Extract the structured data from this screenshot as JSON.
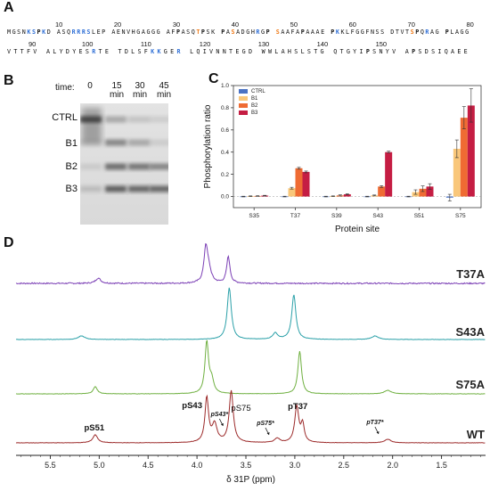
{
  "panelA": {
    "letter": "A",
    "lines": [
      {
        "numbers": [
          {
            "label": "10",
            "pos": 9
          },
          {
            "label": "20",
            "pos": 20
          },
          {
            "label": "30",
            "pos": 31
          },
          {
            "label": "40",
            "pos": 42
          },
          {
            "label": "50",
            "pos": 53
          },
          {
            "label": "60",
            "pos": 64
          },
          {
            "label": "70",
            "pos": 75
          },
          {
            "label": "80",
            "pos": 86
          }
        ],
        "residues": [
          {
            "t": "MGSN",
            "s": ""
          },
          {
            "t": "K",
            "s": "blue"
          },
          {
            "t": "S",
            "s": "blue"
          },
          {
            "t": "P",
            "s": "bold"
          },
          {
            "t": "K",
            "s": "blue"
          },
          {
            "t": "D ",
            "s": ""
          },
          {
            "t": "ASQ",
            "s": ""
          },
          {
            "t": "RRRS",
            "s": "blue"
          },
          {
            "t": "LEP ",
            "s": ""
          },
          {
            "t": "AENVHGAGGG ",
            "s": ""
          },
          {
            "t": "AF",
            "s": ""
          },
          {
            "t": "P",
            "s": "bold"
          },
          {
            "t": "ASQ",
            "s": ""
          },
          {
            "t": "T",
            "s": "orange"
          },
          {
            "t": "P",
            "s": "bold"
          },
          {
            "t": "SK ",
            "s": ""
          },
          {
            "t": "P",
            "s": "bold"
          },
          {
            "t": "A",
            "s": ""
          },
          {
            "t": "S",
            "s": "orange"
          },
          {
            "t": "ADGH",
            "s": ""
          },
          {
            "t": "R",
            "s": "blue"
          },
          {
            "t": "G",
            "s": ""
          },
          {
            "t": "P",
            "s": "bold"
          },
          {
            "t": " ",
            "s": ""
          },
          {
            "t": "S",
            "s": "orange"
          },
          {
            "t": "AAFA",
            "s": ""
          },
          {
            "t": "P",
            "s": "bold"
          },
          {
            "t": "AAAE ",
            "s": ""
          },
          {
            "t": "P",
            "s": "bold"
          },
          {
            "t": "K",
            "s": "blue"
          },
          {
            "t": "KLFGGFNSS ",
            "s": ""
          },
          {
            "t": "DTVT",
            "s": ""
          },
          {
            "t": "S",
            "s": "orange"
          },
          {
            "t": "P",
            "s": "bold"
          },
          {
            "t": "Q",
            "s": ""
          },
          {
            "t": "R",
            "s": "blue"
          },
          {
            "t": "AG ",
            "s": ""
          },
          {
            "t": "P",
            "s": "bold"
          },
          {
            "t": "LAGG",
            "s": ""
          }
        ]
      },
      {
        "numbers": [
          {
            "label": "90",
            "pos": 4
          },
          {
            "label": "100",
            "pos": 14
          },
          {
            "label": "110",
            "pos": 25
          },
          {
            "label": "120",
            "pos": 36
          },
          {
            "label": "130",
            "pos": 47
          },
          {
            "label": "140",
            "pos": 58
          },
          {
            "label": "150",
            "pos": 69
          }
        ],
        "residues": [
          {
            "t": "VTTFV ",
            "s": ""
          },
          {
            "t": "ALYDYES",
            "s": ""
          },
          {
            "t": "R",
            "s": "blue"
          },
          {
            "t": "TE ",
            "s": ""
          },
          {
            "t": "TDLSF",
            "s": ""
          },
          {
            "t": "KK",
            "s": "blue"
          },
          {
            "t": "GE",
            "s": ""
          },
          {
            "t": "R",
            "s": "blue"
          },
          {
            "t": " ",
            "s": ""
          },
          {
            "t": "LQIVNNTEGD ",
            "s": ""
          },
          {
            "t": "WWLAHSLSTG ",
            "s": ""
          },
          {
            "t": "QTGYI",
            "s": ""
          },
          {
            "t": "P",
            "s": "bold"
          },
          {
            "t": "SNYV ",
            "s": ""
          },
          {
            "t": "A",
            "s": ""
          },
          {
            "t": "P",
            "s": "bold"
          },
          {
            "t": "SDSIQAEE",
            "s": ""
          }
        ]
      }
    ]
  },
  "panelB": {
    "letter": "B",
    "time_label": "time:",
    "lanes": [
      {
        "line1": "0",
        "line2": ""
      },
      {
        "line1": "15",
        "line2": "min"
      },
      {
        "line1": "30",
        "line2": "min"
      },
      {
        "line1": "45",
        "line2": "min"
      }
    ],
    "bands": [
      "CTRL",
      "B1",
      "B2",
      "B3"
    ]
  },
  "panelC": {
    "letter": "C",
    "chart_data": {
      "type": "bar",
      "categories": [
        "S35",
        "T37",
        "S39",
        "S43",
        "S51",
        "S75"
      ],
      "series": [
        {
          "name": "CTRL",
          "color": "#4a72c4",
          "values": [
            0.0,
            0.0,
            0.0,
            0.0,
            0.0,
            -0.01
          ],
          "errors": [
            0.003,
            0.003,
            0.003,
            0.003,
            0.003,
            0.03
          ]
        },
        {
          "name": "B1",
          "color": "#f9c77a",
          "values": [
            0.003,
            0.075,
            0.003,
            0.01,
            0.04,
            0.43
          ],
          "errors": [
            0.003,
            0.008,
            0.003,
            0.004,
            0.02,
            0.08
          ]
        },
        {
          "name": "B2",
          "color": "#ef6b33",
          "values": [
            0.005,
            0.255,
            0.01,
            0.09,
            0.07,
            0.71
          ],
          "errors": [
            0.003,
            0.008,
            0.005,
            0.008,
            0.025,
            0.1
          ]
        },
        {
          "name": "B3",
          "color": "#c51d43",
          "values": [
            0.008,
            0.222,
            0.02,
            0.4,
            0.09,
            0.82
          ],
          "errors": [
            0.003,
            0.008,
            0.005,
            0.008,
            0.025,
            0.15
          ]
        }
      ],
      "xlabel": "Protein site",
      "ylabel": "Phosphorylation ratio",
      "ylim": [
        -0.1,
        1.0
      ],
      "yticks": [
        "0.0",
        "0.2",
        "0.4",
        "0.6",
        "0.8",
        "1.0"
      ],
      "legend_position": "top-left",
      "grid": false
    }
  },
  "panelD": {
    "letter": "D",
    "chart_data": {
      "type": "line",
      "xlabel": "δ 31P (ppm)",
      "xlim": [
        5.85,
        1.05
      ],
      "xticks": [
        "5.5",
        "5.0",
        "4.5",
        "4.0",
        "3.5",
        "3.0",
        "2.5",
        "2.0",
        "1.5"
      ],
      "series": [
        {
          "name": "T37A",
          "color": "#7b3fb5",
          "peaks": [
            {
              "ppm": 5.01,
              "height": 6,
              "width": 0.03
            },
            {
              "ppm": 3.91,
              "height": 38,
              "width": 0.022
            },
            {
              "ppm": 3.88,
              "height": 14,
              "width": 0.03
            },
            {
              "ppm": 3.68,
              "height": 30,
              "width": 0.02
            }
          ]
        },
        {
          "name": "S43A",
          "color": "#2aa0a8",
          "peaks": [
            {
              "ppm": 5.18,
              "height": 4,
              "width": 0.04
            },
            {
              "ppm": 3.67,
              "height": 58,
              "width": 0.025
            },
            {
              "ppm": 3.2,
              "height": 7,
              "width": 0.03
            },
            {
              "ppm": 3.01,
              "height": 50,
              "width": 0.025
            },
            {
              "ppm": 2.18,
              "height": 4,
              "width": 0.04
            }
          ]
        },
        {
          "name": "S75A",
          "color": "#6fb040",
          "peaks": [
            {
              "ppm": 5.04,
              "height": 8,
              "width": 0.025
            },
            {
              "ppm": 3.9,
              "height": 58,
              "width": 0.022
            },
            {
              "ppm": 3.85,
              "height": 14,
              "width": 0.025
            },
            {
              "ppm": 2.95,
              "height": 48,
              "width": 0.022
            },
            {
              "ppm": 2.05,
              "height": 4,
              "width": 0.04
            }
          ]
        },
        {
          "name": "WT",
          "color": "#9c2a2a",
          "peaks": [
            {
              "ppm": 5.04,
              "height": 9,
              "width": 0.03
            },
            {
              "ppm": 3.9,
              "height": 50,
              "width": 0.022
            },
            {
              "ppm": 3.82,
              "height": 20,
              "width": 0.03
            },
            {
              "ppm": 3.65,
              "height": 58,
              "width": 0.025
            },
            {
              "ppm": 3.18,
              "height": 5,
              "width": 0.03
            },
            {
              "ppm": 2.98,
              "height": 40,
              "width": 0.025
            },
            {
              "ppm": 2.92,
              "height": 20,
              "width": 0.02
            },
            {
              "ppm": 2.05,
              "height": 4,
              "width": 0.04
            }
          ]
        }
      ],
      "annotations": [
        {
          "text": "pS51",
          "ppm": 5.05,
          "bold": true,
          "italic": false,
          "arrow": false
        },
        {
          "text": "pS43",
          "ppm": 4.05,
          "bold": true,
          "italic": false,
          "arrow": false
        },
        {
          "text": "pS43*",
          "ppm": 3.77,
          "bold": true,
          "italic": true,
          "arrow": true
        },
        {
          "text": "pS75",
          "ppm": 3.55,
          "bold": false,
          "italic": false,
          "arrow": false
        },
        {
          "text": "pS75*",
          "ppm": 3.3,
          "bold": true,
          "italic": true,
          "arrow": true
        },
        {
          "text": "pT37",
          "ppm": 2.97,
          "bold": true,
          "italic": false,
          "arrow": false
        },
        {
          "text": "pT37*",
          "ppm": 2.18,
          "bold": true,
          "italic": true,
          "arrow": true
        }
      ]
    }
  }
}
